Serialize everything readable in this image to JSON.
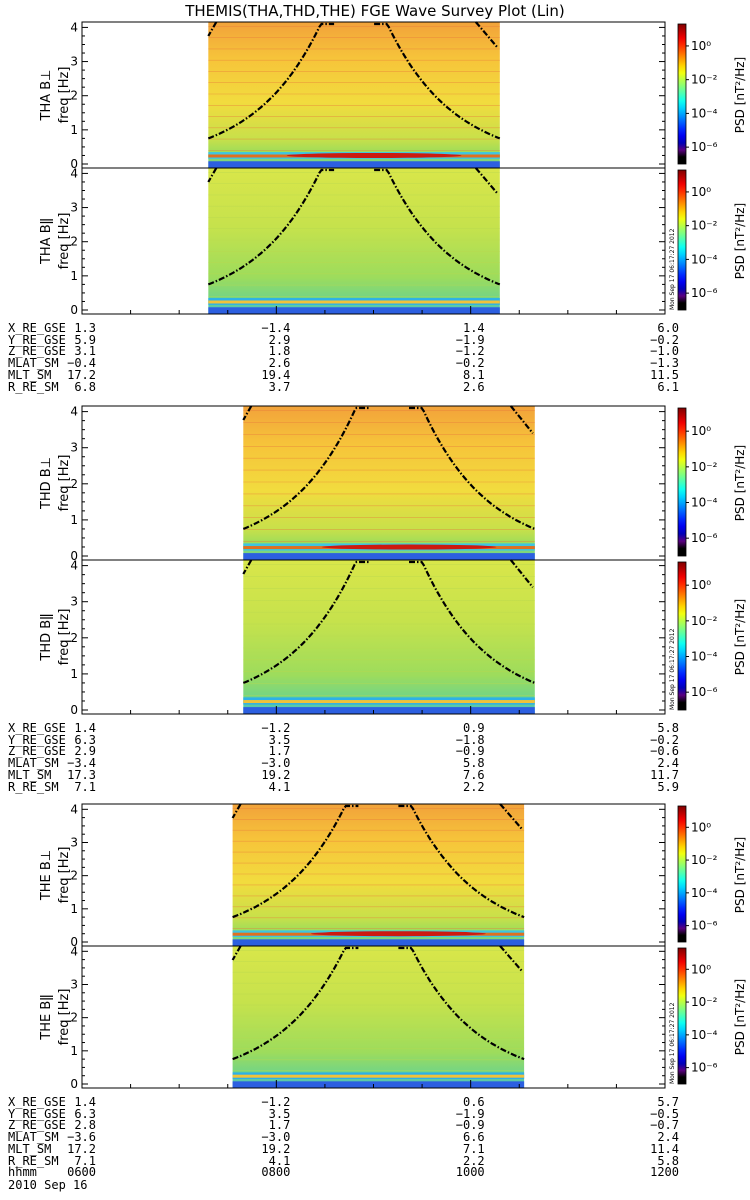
{
  "title": "THEMIS(THA,THD,THE) FGE Wave Survey Plot (Lin)",
  "colorbar": {
    "label": "PSD [nT²/Hz]",
    "ticks": [
      "10⁰",
      "10⁻²",
      "10⁻⁴",
      "10⁻⁶"
    ],
    "tick_exponents": [
      0,
      -2,
      -4,
      -6
    ],
    "range_exponents": [
      -7,
      1.3
    ]
  },
  "stamp": "Mon Sep 17 06:17:27 2012",
  "time_axis": {
    "ticks_hhmm": [
      "0600",
      "0800",
      "1000",
      "1200"
    ],
    "xlabel": "hhmm",
    "date": "2010 Sep 16"
  },
  "chart_data": [
    {
      "type": "heatmap",
      "probe": "THA",
      "panels": [
        {
          "ylabel": "THA B⊥",
          "ylabel2": "freq [Hz]"
        },
        {
          "ylabel": "THA Bǁ",
          "ylabel2": "freq [Hz]"
        }
      ],
      "y_ticks": [
        "0",
        "1",
        "2",
        "3",
        "4"
      ],
      "ylim": [
        0,
        4.1
      ],
      "data_start_hour": 7.3,
      "data_end_hour": 10.3,
      "ephemeris": [
        {
          "label": "X_RE_GSE",
          "values": [
            "1.3",
            "−1.4",
            "1.4",
            "6.0"
          ]
        },
        {
          "label": "Y_RE_GSE",
          "values": [
            "5.9",
            "2.9",
            "−1.9",
            "−0.2"
          ]
        },
        {
          "label": "Z_RE_GSE",
          "values": [
            "3.1",
            "1.8",
            "−1.2",
            "−1.0"
          ]
        },
        {
          "label": "MLAT_SM",
          "values": [
            "−0.4",
            "2.6",
            "−0.2",
            "−1.3"
          ]
        },
        {
          "label": "MLT_SM",
          "values": [
            "17.2",
            "19.4",
            "8.1",
            "11.5"
          ]
        },
        {
          "label": "R_RE_SM",
          "values": [
            "6.8",
            "3.7",
            "2.6",
            "6.1"
          ]
        }
      ]
    },
    {
      "type": "heatmap",
      "probe": "THD",
      "panels": [
        {
          "ylabel": "THD B⊥",
          "ylabel2": "freq [Hz]"
        },
        {
          "ylabel": "THD Bǁ",
          "ylabel2": "freq [Hz]"
        }
      ],
      "y_ticks": [
        "0",
        "1",
        "2",
        "3",
        "4"
      ],
      "ylim": [
        0,
        4.1
      ],
      "data_start_hour": 7.66,
      "data_end_hour": 10.66,
      "ephemeris": [
        {
          "label": "X_RE_GSE",
          "values": [
            "1.4",
            "−1.2",
            "0.9",
            "5.8"
          ]
        },
        {
          "label": "Y_RE_GSE",
          "values": [
            "6.3",
            "3.5",
            "−1.8",
            "−0.2"
          ]
        },
        {
          "label": "Z_RE_GSE",
          "values": [
            "2.9",
            "1.7",
            "−0.9",
            "−0.6"
          ]
        },
        {
          "label": "MLAT_SM",
          "values": [
            "−3.4",
            "−3.0",
            "5.8",
            "2.4"
          ]
        },
        {
          "label": "MLT_SM",
          "values": [
            "17.3",
            "19.2",
            "7.6",
            "11.7"
          ]
        },
        {
          "label": "R_RE_SM",
          "values": [
            "7.1",
            "4.1",
            "2.2",
            "5.9"
          ]
        }
      ]
    },
    {
      "type": "heatmap",
      "probe": "THE",
      "panels": [
        {
          "ylabel": "THE B⊥",
          "ylabel2": "freq [Hz]"
        },
        {
          "ylabel": "THE Bǁ",
          "ylabel2": "freq [Hz]"
        }
      ],
      "y_ticks": [
        "0",
        "1",
        "2",
        "3",
        "4"
      ],
      "ylim": [
        0,
        4.1
      ],
      "data_start_hour": 7.55,
      "data_end_hour": 10.55,
      "ephemeris": [
        {
          "label": "X_RE_GSE",
          "values": [
            "1.4",
            "−1.2",
            "0.6",
            "5.7"
          ]
        },
        {
          "label": "Y_RE_GSE",
          "values": [
            "6.3",
            "3.5",
            "−1.9",
            "−0.5"
          ]
        },
        {
          "label": "Z_RE_GSE",
          "values": [
            "2.8",
            "1.7",
            "−0.9",
            "−0.7"
          ]
        },
        {
          "label": "MLAT_SM",
          "values": [
            "−3.6",
            "−3.0",
            "6.6",
            "2.4"
          ]
        },
        {
          "label": "MLT_SM",
          "values": [
            "17.2",
            "19.2",
            "7.1",
            "11.4"
          ]
        },
        {
          "label": "R_RE_SM",
          "values": [
            "7.1",
            "4.1",
            "2.2",
            "5.8"
          ]
        }
      ]
    }
  ],
  "colors": {
    "spectrogram_bg": "#f5d23a",
    "curve": "#000000"
  }
}
